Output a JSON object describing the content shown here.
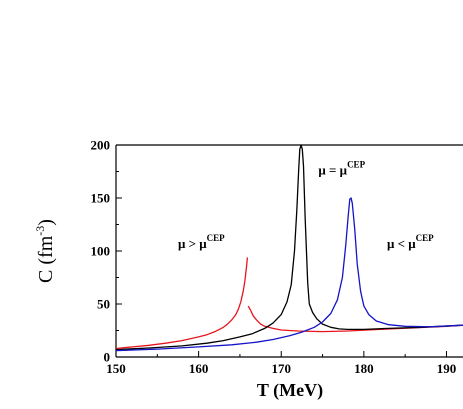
{
  "chart_data": {
    "type": "line",
    "title": "",
    "xlabel": "T (MeV)",
    "ylabel": {
      "base": "C (fm",
      "exponent": "-3",
      "close": ")"
    },
    "xlim": [
      150,
      192
    ],
    "ylim": [
      0,
      200
    ],
    "x_ticks": [
      150,
      160,
      170,
      180,
      190
    ],
    "y_ticks": [
      0,
      50,
      100,
      150,
      200
    ],
    "grid": false,
    "series": [
      {
        "name": "μ > μ^CEP",
        "color": "#e8141c",
        "segments": [
          [
            [
              150,
              8
            ],
            [
              152,
              9.5
            ],
            [
              154,
              11
            ],
            [
              156,
              13
            ],
            [
              158,
              15.5
            ],
            [
              160,
              19
            ],
            [
              161,
              21
            ],
            [
              162,
              24
            ],
            [
              163,
              28
            ],
            [
              163.5,
              31
            ],
            [
              164,
              35
            ],
            [
              164.5,
              40
            ],
            [
              164.8,
              45
            ],
            [
              165.1,
              52
            ],
            [
              165.4,
              62
            ],
            [
              165.6,
              72
            ],
            [
              165.8,
              85
            ],
            [
              165.9,
              94
            ]
          ],
          [
            [
              166.0,
              48
            ],
            [
              166.3,
              44
            ],
            [
              166.6,
              39
            ],
            [
              167,
              35
            ],
            [
              167.5,
              31
            ],
            [
              168,
              29
            ],
            [
              169,
              27
            ],
            [
              170,
              25.5
            ],
            [
              172,
              24.5
            ],
            [
              175,
              24
            ],
            [
              178,
              24.5
            ],
            [
              182,
              26
            ],
            [
              186,
              27.5
            ],
            [
              190,
              29
            ],
            [
              192,
              30
            ]
          ]
        ]
      },
      {
        "name": "μ=μ^CEP",
        "color": "#000000",
        "segments": [
          [
            [
              150,
              7
            ],
            [
              154,
              8.5
            ],
            [
              158,
              10.5
            ],
            [
              161,
              13
            ],
            [
              163,
              15.5
            ],
            [
              165,
              19
            ],
            [
              166.5,
              22
            ],
            [
              168,
              27
            ],
            [
              169,
              32
            ],
            [
              170,
              40
            ],
            [
              170.7,
              52
            ],
            [
              171.2,
              68
            ],
            [
              171.6,
              100
            ],
            [
              171.9,
              140
            ],
            [
              172.1,
              175
            ],
            [
              172.25,
              196
            ],
            [
              172.4,
              200
            ],
            [
              172.55,
              196
            ],
            [
              172.7,
              180
            ],
            [
              172.9,
              130
            ],
            [
              173.2,
              70
            ],
            [
              173.4,
              50
            ],
            [
              173.8,
              42
            ],
            [
              174.3,
              36
            ],
            [
              175,
              31
            ],
            [
              176,
              28
            ],
            [
              177,
              26.5
            ],
            [
              178,
              26
            ],
            [
              180,
              26
            ],
            [
              183,
              27
            ],
            [
              187,
              28
            ],
            [
              192,
              30
            ]
          ]
        ]
      },
      {
        "name": "μ < μ^CEP",
        "color": "#1414c8",
        "segments": [
          [
            [
              150,
              6
            ],
            [
              155,
              7.5
            ],
            [
              160,
              9.5
            ],
            [
              164,
              11.5
            ],
            [
              167,
              14
            ],
            [
              169,
              16.5
            ],
            [
              171,
              20
            ],
            [
              172.5,
              23.5
            ],
            [
              174,
              28
            ],
            [
              175,
              33
            ],
            [
              176,
              41
            ],
            [
              176.8,
              54
            ],
            [
              177.4,
              75
            ],
            [
              177.8,
              105
            ],
            [
              178.1,
              133
            ],
            [
              178.3,
              149
            ],
            [
              178.45,
              150
            ],
            [
              178.6,
              145
            ],
            [
              178.9,
              120
            ],
            [
              179.2,
              88
            ],
            [
              179.6,
              62
            ],
            [
              180,
              48
            ],
            [
              180.6,
              40
            ],
            [
              181.5,
              34
            ],
            [
              183,
              30.5
            ],
            [
              185,
              29
            ],
            [
              188,
              28.5
            ],
            [
              192,
              30
            ]
          ]
        ]
      }
    ],
    "annotations": [
      {
        "base": "μ = μ",
        "sup": "CEP",
        "at_x": 174.5,
        "at_y": 172
      },
      {
        "base": "μ > μ",
        "sup": "CEP",
        "at_x": 157.5,
        "at_y": 103
      },
      {
        "base": "μ < μ",
        "sup": "CEP",
        "at_x": 182.8,
        "at_y": 103
      }
    ]
  }
}
